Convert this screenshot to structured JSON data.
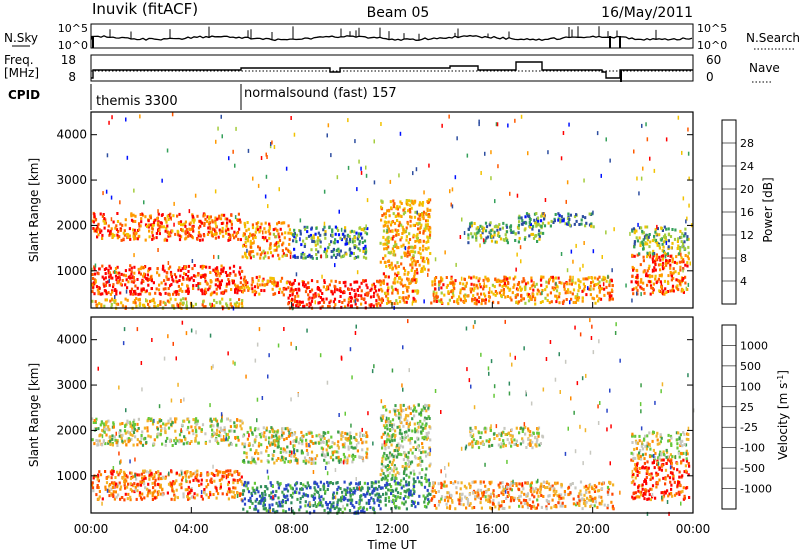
{
  "header": {
    "station": "Inuvik (fitACF)",
    "beam": "Beam 05",
    "date": "16/May/2011"
  },
  "scan_panels": {
    "nsky_label": "N.Sky",
    "nsky_ticks": [
      "10^5",
      "10^0"
    ],
    "nsearch_label": "N.Search",
    "freq_label_1": "Freq.",
    "freq_label_2": "[MHz]",
    "freq_ticks": [
      "18",
      "8"
    ],
    "nave_label": "Nave",
    "nave_ticks": [
      "60",
      "0"
    ],
    "cpid_label": "CPID",
    "cpid_programs": [
      {
        "name": "themis 3300",
        "start_hour": 0
      },
      {
        "name": "normalsound (fast) 157",
        "start_hour": 6
      }
    ]
  },
  "chart_data": [
    {
      "type": "heatmap",
      "title": "",
      "xlabel": "Time UT",
      "ylabel": "Slant Range [km]",
      "x_ticks": [
        "00:00",
        "04:00",
        "08:00",
        "12:00",
        "16:00",
        "20:00",
        "00:00"
      ],
      "xlim_hours": [
        0,
        24
      ],
      "ylim": [
        180,
        4500
      ],
      "y_ticks": [
        1000,
        2000,
        3000,
        4000
      ],
      "colorbar": {
        "label": "Power [dB]",
        "ticks": [
          "28",
          "24",
          "20",
          "16",
          "12",
          "8",
          "4"
        ],
        "colors": [
          "#ff0000",
          "#ff5a00",
          "#ff9a00",
          "#f2c200",
          "#a4cc3c",
          "#34a05a",
          "#2d4ea0",
          "#0010ff"
        ]
      },
      "echo_regions": [
        {
          "t0": 0.0,
          "t1": 6.0,
          "r0": 1700,
          "r1": 2300,
          "level": 0.8
        },
        {
          "t0": 0.0,
          "t1": 6.0,
          "r0": 500,
          "r1": 1150,
          "level": 0.9
        },
        {
          "t0": 0.0,
          "t1": 6.0,
          "r0": 200,
          "r1": 420,
          "level": 0.6
        },
        {
          "t0": 6.0,
          "t1": 8.0,
          "r0": 1300,
          "r1": 2100,
          "level": 0.7
        },
        {
          "t0": 6.0,
          "t1": 8.0,
          "r0": 500,
          "r1": 900,
          "level": 0.75
        },
        {
          "t0": 7.8,
          "t1": 11.5,
          "r0": 200,
          "r1": 820,
          "level": 0.95
        },
        {
          "t0": 8.0,
          "t1": 11.0,
          "r0": 1300,
          "r1": 2000,
          "level": 0.3
        },
        {
          "t0": 11.5,
          "t1": 13.5,
          "r0": 1000,
          "r1": 2600,
          "level": 0.65
        },
        {
          "t0": 11.5,
          "t1": 13.0,
          "r0": 300,
          "r1": 1000,
          "level": 0.7
        },
        {
          "t0": 13.5,
          "t1": 20.8,
          "r0": 300,
          "r1": 900,
          "level": 0.7
        },
        {
          "t0": 15.0,
          "t1": 18.0,
          "r0": 1650,
          "r1": 2100,
          "level": 0.35
        },
        {
          "t0": 17.0,
          "t1": 20.0,
          "r0": 2000,
          "r1": 2300,
          "level": 0.3
        },
        {
          "t0": 21.5,
          "t1": 23.8,
          "r0": 500,
          "r1": 1400,
          "level": 0.8
        },
        {
          "t0": 21.5,
          "t1": 23.8,
          "r0": 1400,
          "r1": 2000,
          "level": 0.4
        }
      ]
    },
    {
      "type": "heatmap",
      "title": "",
      "xlabel": "Time UT",
      "ylabel": "Slant Range [km]",
      "x_ticks": [
        "00:00",
        "04:00",
        "08:00",
        "12:00",
        "16:00",
        "20:00",
        "00:00"
      ],
      "xlim_hours": [
        0,
        24
      ],
      "ylim": [
        180,
        4500
      ],
      "y_ticks": [
        1000,
        2000,
        3000,
        4000
      ],
      "colorbar": {
        "label": "Velocity [m s^-1]",
        "ticks": [
          "1000",
          "500",
          "100",
          "25",
          "-25",
          "-100",
          "-500",
          "-1000"
        ],
        "colors": [
          "#2a46c8",
          "#2e8a5e",
          "#3c9e48",
          "#66c838",
          "#c8c8c0",
          "#f2b428",
          "#ff8800",
          "#ff4400",
          "#ff0000"
        ]
      },
      "echo_regions": [
        {
          "t0": 0.0,
          "t1": 6.0,
          "r0": 1700,
          "r1": 2300,
          "level": 0.5
        },
        {
          "t0": 0.0,
          "t1": 6.0,
          "r0": 500,
          "r1": 1150,
          "level": 0.75
        },
        {
          "t0": 6.0,
          "t1": 8.0,
          "r0": 1300,
          "r1": 2100,
          "level": 0.5
        },
        {
          "t0": 6.0,
          "t1": 11.5,
          "r0": 200,
          "r1": 900,
          "level": 0.15
        },
        {
          "t0": 8.0,
          "t1": 11.0,
          "r0": 1300,
          "r1": 2000,
          "level": 0.5
        },
        {
          "t0": 11.5,
          "t1": 13.5,
          "r0": 1000,
          "r1": 2600,
          "level": 0.45
        },
        {
          "t0": 11.5,
          "t1": 13.5,
          "r0": 300,
          "r1": 1000,
          "level": 0.2
        },
        {
          "t0": 13.5,
          "t1": 20.8,
          "r0": 300,
          "r1": 900,
          "level": 0.65
        },
        {
          "t0": 15.0,
          "t1": 18.0,
          "r0": 1650,
          "r1": 2100,
          "level": 0.5
        },
        {
          "t0": 21.5,
          "t1": 23.8,
          "r0": 500,
          "r1": 1400,
          "level": 0.85
        },
        {
          "t0": 21.5,
          "t1": 23.8,
          "r0": 1400,
          "r1": 2000,
          "level": 0.5
        }
      ]
    }
  ]
}
